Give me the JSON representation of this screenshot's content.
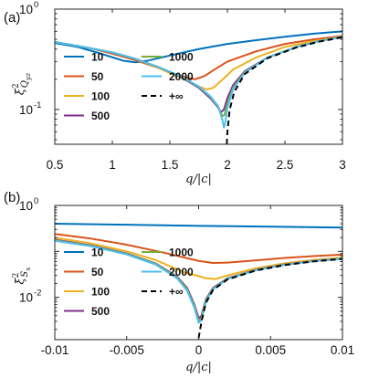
{
  "chart_data": [
    {
      "type": "line",
      "panel_label": "(a)",
      "xlabel": "q/|c|",
      "ylabel": "ξ²_{Q_{yz}}",
      "ylabel_main": "ξ",
      "ylabel_sup": "2",
      "ylabel_sub": "Q",
      "ylabel_subsub": "yz",
      "x_scale": "linear",
      "y_scale": "log",
      "xlim": [
        0.5,
        3
      ],
      "ylim": [
        0.045,
        1
      ],
      "xticks": [
        0.5,
        1,
        1.5,
        2,
        2.5,
        3
      ],
      "xtick_labels": [
        "0.5",
        "1",
        "1.5",
        "2",
        "2.5",
        "3"
      ],
      "yticks": [
        0.1,
        1
      ],
      "ytick_labels": [
        {
          "base": "10",
          "exp": "-1"
        },
        {
          "base": "10",
          "exp": "0"
        }
      ],
      "legend_position": "lower-left",
      "series": [
        {
          "name": "10",
          "color": "#0072BD",
          "dash": false,
          "points": [
            [
              0.5,
              0.46
            ],
            [
              0.7,
              0.42
            ],
            [
              0.9,
              0.36
            ],
            [
              1.1,
              0.305
            ],
            [
              1.2,
              0.295
            ],
            [
              1.3,
              0.305
            ],
            [
              1.5,
              0.345
            ],
            [
              1.75,
              0.4
            ],
            [
              2.0,
              0.45
            ],
            [
              2.25,
              0.49
            ],
            [
              2.5,
              0.53
            ],
            [
              2.75,
              0.57
            ],
            [
              3.0,
              0.6
            ]
          ]
        },
        {
          "name": "50",
          "color": "#D95319",
          "dash": false,
          "points": [
            [
              0.5,
              0.47
            ],
            [
              0.8,
              0.41
            ],
            [
              1.0,
              0.36
            ],
            [
              1.2,
              0.31
            ],
            [
              1.4,
              0.26
            ],
            [
              1.55,
              0.225
            ],
            [
              1.65,
              0.207
            ],
            [
              1.72,
              0.2
            ],
            [
              1.8,
              0.215
            ],
            [
              1.9,
              0.255
            ],
            [
              2.0,
              0.3
            ],
            [
              2.25,
              0.38
            ],
            [
              2.5,
              0.45
            ],
            [
              2.75,
              0.5
            ],
            [
              3.0,
              0.54
            ]
          ]
        },
        {
          "name": "100",
          "color": "#EDB120",
          "dash": false,
          "points": [
            [
              0.5,
              0.47
            ],
            [
              0.8,
              0.41
            ],
            [
              1.0,
              0.37
            ],
            [
              1.2,
              0.32
            ],
            [
              1.4,
              0.26
            ],
            [
              1.6,
              0.205
            ],
            [
              1.75,
              0.17
            ],
            [
              1.82,
              0.158
            ],
            [
              1.88,
              0.165
            ],
            [
              1.95,
              0.195
            ],
            [
              2.05,
              0.25
            ],
            [
              2.25,
              0.33
            ],
            [
              2.5,
              0.42
            ],
            [
              2.75,
              0.48
            ],
            [
              3.0,
              0.53
            ]
          ]
        },
        {
          "name": "500",
          "color": "#7E2F8E",
          "dash": false,
          "points": [
            [
              0.5,
              0.47
            ],
            [
              0.8,
              0.41
            ],
            [
              1.0,
              0.37
            ],
            [
              1.2,
              0.32
            ],
            [
              1.4,
              0.265
            ],
            [
              1.6,
              0.21
            ],
            [
              1.75,
              0.165
            ],
            [
              1.85,
              0.13
            ],
            [
              1.91,
              0.108
            ],
            [
              1.945,
              0.094
            ],
            [
              1.97,
              0.1
            ],
            [
              2.0,
              0.13
            ],
            [
              2.05,
              0.175
            ],
            [
              2.15,
              0.24
            ],
            [
              2.35,
              0.33
            ],
            [
              2.6,
              0.42
            ],
            [
              2.8,
              0.48
            ],
            [
              3.0,
              0.53
            ]
          ]
        },
        {
          "name": "1000",
          "color": "#77AC30",
          "dash": false,
          "points": [
            [
              0.5,
              0.47
            ],
            [
              0.8,
              0.41
            ],
            [
              1.0,
              0.37
            ],
            [
              1.2,
              0.32
            ],
            [
              1.4,
              0.265
            ],
            [
              1.6,
              0.212
            ],
            [
              1.75,
              0.168
            ],
            [
              1.85,
              0.134
            ],
            [
              1.92,
              0.106
            ],
            [
              1.955,
              0.086
            ],
            [
              1.975,
              0.088
            ],
            [
              2.0,
              0.115
            ],
            [
              2.05,
              0.165
            ],
            [
              2.15,
              0.235
            ],
            [
              2.35,
              0.33
            ],
            [
              2.6,
              0.42
            ],
            [
              2.8,
              0.48
            ],
            [
              3.0,
              0.53
            ]
          ]
        },
        {
          "name": "2000",
          "color": "#4DBEEE",
          "dash": false,
          "points": [
            [
              0.5,
              0.47
            ],
            [
              0.8,
              0.41
            ],
            [
              1.0,
              0.37
            ],
            [
              1.2,
              0.32
            ],
            [
              1.4,
              0.265
            ],
            [
              1.6,
              0.213
            ],
            [
              1.75,
              0.17
            ],
            [
              1.85,
              0.136
            ],
            [
              1.92,
              0.108
            ],
            [
              1.955,
              0.08
            ],
            [
              1.97,
              0.066
            ],
            [
              1.985,
              0.078
            ],
            [
              2.0,
              0.105
            ],
            [
              2.05,
              0.16
            ],
            [
              2.15,
              0.232
            ],
            [
              2.35,
              0.33
            ],
            [
              2.6,
              0.42
            ],
            [
              2.8,
              0.48
            ],
            [
              3.0,
              0.53
            ]
          ]
        },
        {
          "name": "+∞",
          "color": "#000000",
          "dash": true,
          "points": [
            [
              1.995,
              0.045
            ],
            [
              2.0,
              0.06
            ],
            [
              2.02,
              0.1
            ],
            [
              2.06,
              0.15
            ],
            [
              2.15,
              0.225
            ],
            [
              2.35,
              0.325
            ],
            [
              2.6,
              0.415
            ],
            [
              2.8,
              0.475
            ],
            [
              3.0,
              0.525
            ]
          ]
        }
      ]
    },
    {
      "type": "line",
      "panel_label": "(b)",
      "xlabel": "q/|c|",
      "ylabel": "ξ²_{S_x}",
      "ylabel_main": "ξ",
      "ylabel_sup": "2",
      "ylabel_sub": "S",
      "ylabel_subsub": "x",
      "x_scale": "linear",
      "y_scale": "log",
      "xlim": [
        -0.01,
        0.01
      ],
      "ylim": [
        0.0012,
        1
      ],
      "xticks": [
        -0.01,
        -0.005,
        0,
        0.005,
        0.01
      ],
      "xtick_labels": [
        "-0.01",
        "-0.005",
        "0",
        "0.005",
        "0.01"
      ],
      "yticks": [
        0.01,
        1
      ],
      "ytick_labels": [
        {
          "base": "10",
          "exp": "-2"
        },
        {
          "base": "10",
          "exp": "0"
        }
      ],
      "legend_position": "lower-left",
      "series": [
        {
          "name": "10",
          "color": "#0072BD",
          "dash": false,
          "points": [
            [
              -0.01,
              0.4
            ],
            [
              -0.005,
              0.38
            ],
            [
              0,
              0.36
            ],
            [
              0.005,
              0.345
            ],
            [
              0.01,
              0.33
            ]
          ]
        },
        {
          "name": "50",
          "color": "#D95319",
          "dash": false,
          "points": [
            [
              -0.01,
              0.24
            ],
            [
              -0.0075,
              0.19
            ],
            [
              -0.005,
              0.14
            ],
            [
              -0.0025,
              0.095
            ],
            [
              0,
              0.062
            ],
            [
              0.001,
              0.056
            ],
            [
              0.002,
              0.057
            ],
            [
              0.004,
              0.064
            ],
            [
              0.006,
              0.072
            ],
            [
              0.008,
              0.079
            ],
            [
              0.01,
              0.085
            ]
          ]
        },
        {
          "name": "100",
          "color": "#EDB120",
          "dash": false,
          "points": [
            [
              -0.01,
              0.2
            ],
            [
              -0.0075,
              0.15
            ],
            [
              -0.005,
              0.1
            ],
            [
              -0.003,
              0.065
            ],
            [
              -0.001,
              0.035
            ],
            [
              0,
              0.029
            ],
            [
              0.0005,
              0.026
            ],
            [
              0.0012,
              0.025
            ],
            [
              0.002,
              0.03
            ],
            [
              0.004,
              0.043
            ],
            [
              0.006,
              0.055
            ],
            [
              0.008,
              0.065
            ],
            [
              0.01,
              0.073
            ]
          ]
        },
        {
          "name": "500",
          "color": "#7E2F8E",
          "dash": false,
          "points": [
            [
              -0.01,
              0.18
            ],
            [
              -0.0075,
              0.135
            ],
            [
              -0.005,
              0.09
            ],
            [
              -0.003,
              0.055
            ],
            [
              -0.0015,
              0.028
            ],
            [
              -0.0008,
              0.016
            ],
            [
              -0.0003,
              0.007
            ],
            [
              0,
              0.0035
            ],
            [
              0.0002,
              0.004
            ],
            [
              0.0005,
              0.009
            ],
            [
              0.001,
              0.016
            ],
            [
              0.002,
              0.026
            ],
            [
              0.004,
              0.04
            ],
            [
              0.006,
              0.052
            ],
            [
              0.008,
              0.062
            ],
            [
              0.01,
              0.07
            ]
          ]
        },
        {
          "name": "1000",
          "color": "#77AC30",
          "dash": false,
          "points": [
            [
              -0.01,
              0.175
            ],
            [
              -0.0075,
              0.132
            ],
            [
              -0.005,
              0.088
            ],
            [
              -0.003,
              0.054
            ],
            [
              -0.0015,
              0.027
            ],
            [
              -0.0008,
              0.015
            ],
            [
              -0.0003,
              0.0065
            ],
            [
              0,
              0.003
            ],
            [
              0.0002,
              0.0035
            ],
            [
              0.0005,
              0.0085
            ],
            [
              0.001,
              0.0155
            ],
            [
              0.002,
              0.0255
            ],
            [
              0.004,
              0.0395
            ],
            [
              0.006,
              0.0515
            ],
            [
              0.008,
              0.0615
            ],
            [
              0.01,
              0.0695
            ]
          ]
        },
        {
          "name": "2000",
          "color": "#4DBEEE",
          "dash": false,
          "points": [
            [
              -0.01,
              0.17
            ],
            [
              -0.0075,
              0.13
            ],
            [
              -0.005,
              0.086
            ],
            [
              -0.003,
              0.052
            ],
            [
              -0.0015,
              0.026
            ],
            [
              -0.0008,
              0.014
            ],
            [
              -0.0003,
              0.006
            ],
            [
              0,
              0.0028
            ],
            [
              0.0002,
              0.0032
            ],
            [
              0.0005,
              0.008
            ],
            [
              0.001,
              0.015
            ],
            [
              0.002,
              0.025
            ],
            [
              0.004,
              0.039
            ],
            [
              0.006,
              0.051
            ],
            [
              0.008,
              0.061
            ],
            [
              0.01,
              0.069
            ]
          ]
        },
        {
          "name": "+∞",
          "color": "#000000",
          "dash": true,
          "points": [
            [
              0,
              0.0013
            ],
            [
              0.0002,
              0.003
            ],
            [
              0.0005,
              0.0075
            ],
            [
              0.001,
              0.0145
            ],
            [
              0.002,
              0.0245
            ],
            [
              0.004,
              0.0385
            ],
            [
              0.006,
              0.0505
            ],
            [
              0.008,
              0.0605
            ],
            [
              0.01,
              0.0685
            ]
          ]
        }
      ]
    }
  ]
}
